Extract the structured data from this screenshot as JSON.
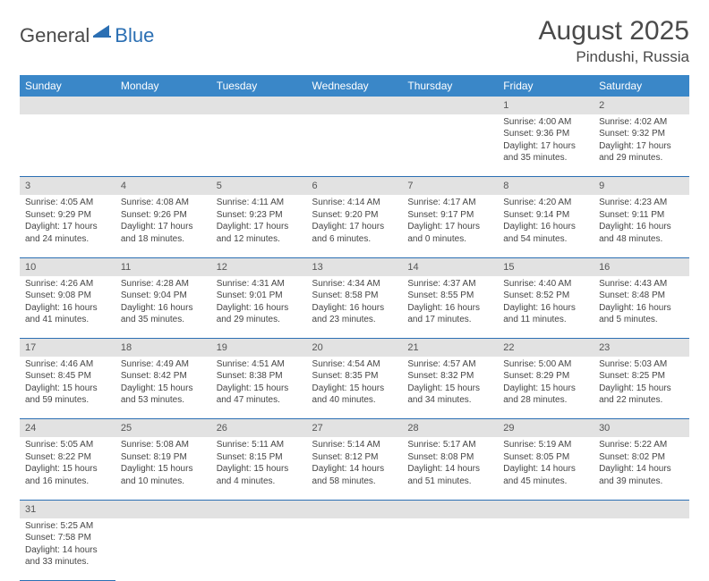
{
  "logo": {
    "text1": "General",
    "text2": "Blue"
  },
  "title": "August 2025",
  "location": "Pindushi, Russia",
  "colors": {
    "header_bg": "#3a87c8",
    "header_text": "#ffffff",
    "daynum_bg": "#e2e2e2",
    "divider": "#2b6fb3",
    "body_text": "#454545",
    "logo_gray": "#4a4a4a",
    "logo_blue": "#2b6fb3"
  },
  "dayHeaders": [
    "Sunday",
    "Monday",
    "Tuesday",
    "Wednesday",
    "Thursday",
    "Friday",
    "Saturday"
  ],
  "weeks": [
    [
      null,
      null,
      null,
      null,
      null,
      {
        "n": "1",
        "sr": "Sunrise: 4:00 AM",
        "ss": "Sunset: 9:36 PM",
        "d1": "Daylight: 17 hours",
        "d2": "and 35 minutes."
      },
      {
        "n": "2",
        "sr": "Sunrise: 4:02 AM",
        "ss": "Sunset: 9:32 PM",
        "d1": "Daylight: 17 hours",
        "d2": "and 29 minutes."
      }
    ],
    [
      {
        "n": "3",
        "sr": "Sunrise: 4:05 AM",
        "ss": "Sunset: 9:29 PM",
        "d1": "Daylight: 17 hours",
        "d2": "and 24 minutes."
      },
      {
        "n": "4",
        "sr": "Sunrise: 4:08 AM",
        "ss": "Sunset: 9:26 PM",
        "d1": "Daylight: 17 hours",
        "d2": "and 18 minutes."
      },
      {
        "n": "5",
        "sr": "Sunrise: 4:11 AM",
        "ss": "Sunset: 9:23 PM",
        "d1": "Daylight: 17 hours",
        "d2": "and 12 minutes."
      },
      {
        "n": "6",
        "sr": "Sunrise: 4:14 AM",
        "ss": "Sunset: 9:20 PM",
        "d1": "Daylight: 17 hours",
        "d2": "and 6 minutes."
      },
      {
        "n": "7",
        "sr": "Sunrise: 4:17 AM",
        "ss": "Sunset: 9:17 PM",
        "d1": "Daylight: 17 hours",
        "d2": "and 0 minutes."
      },
      {
        "n": "8",
        "sr": "Sunrise: 4:20 AM",
        "ss": "Sunset: 9:14 PM",
        "d1": "Daylight: 16 hours",
        "d2": "and 54 minutes."
      },
      {
        "n": "9",
        "sr": "Sunrise: 4:23 AM",
        "ss": "Sunset: 9:11 PM",
        "d1": "Daylight: 16 hours",
        "d2": "and 48 minutes."
      }
    ],
    [
      {
        "n": "10",
        "sr": "Sunrise: 4:26 AM",
        "ss": "Sunset: 9:08 PM",
        "d1": "Daylight: 16 hours",
        "d2": "and 41 minutes."
      },
      {
        "n": "11",
        "sr": "Sunrise: 4:28 AM",
        "ss": "Sunset: 9:04 PM",
        "d1": "Daylight: 16 hours",
        "d2": "and 35 minutes."
      },
      {
        "n": "12",
        "sr": "Sunrise: 4:31 AM",
        "ss": "Sunset: 9:01 PM",
        "d1": "Daylight: 16 hours",
        "d2": "and 29 minutes."
      },
      {
        "n": "13",
        "sr": "Sunrise: 4:34 AM",
        "ss": "Sunset: 8:58 PM",
        "d1": "Daylight: 16 hours",
        "d2": "and 23 minutes."
      },
      {
        "n": "14",
        "sr": "Sunrise: 4:37 AM",
        "ss": "Sunset: 8:55 PM",
        "d1": "Daylight: 16 hours",
        "d2": "and 17 minutes."
      },
      {
        "n": "15",
        "sr": "Sunrise: 4:40 AM",
        "ss": "Sunset: 8:52 PM",
        "d1": "Daylight: 16 hours",
        "d2": "and 11 minutes."
      },
      {
        "n": "16",
        "sr": "Sunrise: 4:43 AM",
        "ss": "Sunset: 8:48 PM",
        "d1": "Daylight: 16 hours",
        "d2": "and 5 minutes."
      }
    ],
    [
      {
        "n": "17",
        "sr": "Sunrise: 4:46 AM",
        "ss": "Sunset: 8:45 PM",
        "d1": "Daylight: 15 hours",
        "d2": "and 59 minutes."
      },
      {
        "n": "18",
        "sr": "Sunrise: 4:49 AM",
        "ss": "Sunset: 8:42 PM",
        "d1": "Daylight: 15 hours",
        "d2": "and 53 minutes."
      },
      {
        "n": "19",
        "sr": "Sunrise: 4:51 AM",
        "ss": "Sunset: 8:38 PM",
        "d1": "Daylight: 15 hours",
        "d2": "and 47 minutes."
      },
      {
        "n": "20",
        "sr": "Sunrise: 4:54 AM",
        "ss": "Sunset: 8:35 PM",
        "d1": "Daylight: 15 hours",
        "d2": "and 40 minutes."
      },
      {
        "n": "21",
        "sr": "Sunrise: 4:57 AM",
        "ss": "Sunset: 8:32 PM",
        "d1": "Daylight: 15 hours",
        "d2": "and 34 minutes."
      },
      {
        "n": "22",
        "sr": "Sunrise: 5:00 AM",
        "ss": "Sunset: 8:29 PM",
        "d1": "Daylight: 15 hours",
        "d2": "and 28 minutes."
      },
      {
        "n": "23",
        "sr": "Sunrise: 5:03 AM",
        "ss": "Sunset: 8:25 PM",
        "d1": "Daylight: 15 hours",
        "d2": "and 22 minutes."
      }
    ],
    [
      {
        "n": "24",
        "sr": "Sunrise: 5:05 AM",
        "ss": "Sunset: 8:22 PM",
        "d1": "Daylight: 15 hours",
        "d2": "and 16 minutes."
      },
      {
        "n": "25",
        "sr": "Sunrise: 5:08 AM",
        "ss": "Sunset: 8:19 PM",
        "d1": "Daylight: 15 hours",
        "d2": "and 10 minutes."
      },
      {
        "n": "26",
        "sr": "Sunrise: 5:11 AM",
        "ss": "Sunset: 8:15 PM",
        "d1": "Daylight: 15 hours",
        "d2": "and 4 minutes."
      },
      {
        "n": "27",
        "sr": "Sunrise: 5:14 AM",
        "ss": "Sunset: 8:12 PM",
        "d1": "Daylight: 14 hours",
        "d2": "and 58 minutes."
      },
      {
        "n": "28",
        "sr": "Sunrise: 5:17 AM",
        "ss": "Sunset: 8:08 PM",
        "d1": "Daylight: 14 hours",
        "d2": "and 51 minutes."
      },
      {
        "n": "29",
        "sr": "Sunrise: 5:19 AM",
        "ss": "Sunset: 8:05 PM",
        "d1": "Daylight: 14 hours",
        "d2": "and 45 minutes."
      },
      {
        "n": "30",
        "sr": "Sunrise: 5:22 AM",
        "ss": "Sunset: 8:02 PM",
        "d1": "Daylight: 14 hours",
        "d2": "and 39 minutes."
      }
    ],
    [
      {
        "n": "31",
        "sr": "Sunrise: 5:25 AM",
        "ss": "Sunset: 7:58 PM",
        "d1": "Daylight: 14 hours",
        "d2": "and 33 minutes."
      },
      null,
      null,
      null,
      null,
      null,
      null
    ]
  ]
}
